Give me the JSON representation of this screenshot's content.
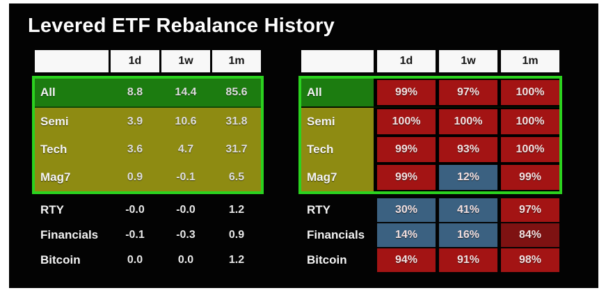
{
  "title": "Levered ETF Rebalance History",
  "palette": {
    "panel_bg": "#030303",
    "page_border": "#ffffff",
    "header_bg": "#f8f8f8",
    "highlight_border_green": "#2bd21f",
    "row_green": "#1c7c10",
    "row_olive": "#8e8b12",
    "cell_red": "#a31414",
    "cell_dark_red": "#7e1212",
    "cell_blue": "#3b6181"
  },
  "left_table": {
    "headers": [
      "",
      "1d",
      "1w",
      "1m"
    ],
    "rows": [
      {
        "label": "All",
        "tone": "green",
        "values": [
          "8.8",
          "14.4",
          "85.6"
        ]
      },
      {
        "label": "Semi",
        "tone": "olive",
        "values": [
          "3.9",
          "10.6",
          "31.8"
        ]
      },
      {
        "label": "Tech",
        "tone": "olive",
        "values": [
          "3.6",
          "4.7",
          "31.7"
        ]
      },
      {
        "label": "Mag7",
        "tone": "olive",
        "values": [
          "0.9",
          "-0.1",
          "6.5"
        ]
      },
      {
        "label": "RTY",
        "tone": "none",
        "values": [
          "-0.0",
          "-0.0",
          "1.2"
        ]
      },
      {
        "label": "Financials",
        "tone": "none",
        "values": [
          "-0.1",
          "-0.3",
          "0.9"
        ]
      },
      {
        "label": "Bitcoin",
        "tone": "none",
        "values": [
          "0.0",
          "0.0",
          "1.2"
        ]
      }
    ]
  },
  "right_table": {
    "headers": [
      "",
      "1d",
      "1w",
      "1m"
    ],
    "rows": [
      {
        "label": "All",
        "tone": "green",
        "cells": [
          {
            "value": "99%",
            "tone": "red"
          },
          {
            "value": "97%",
            "tone": "red"
          },
          {
            "value": "100%",
            "tone": "red"
          }
        ]
      },
      {
        "label": "Semi",
        "tone": "olive",
        "cells": [
          {
            "value": "100%",
            "tone": "red"
          },
          {
            "value": "100%",
            "tone": "red"
          },
          {
            "value": "100%",
            "tone": "red"
          }
        ]
      },
      {
        "label": "Tech",
        "tone": "olive",
        "cells": [
          {
            "value": "99%",
            "tone": "red"
          },
          {
            "value": "93%",
            "tone": "red"
          },
          {
            "value": "100%",
            "tone": "red"
          }
        ]
      },
      {
        "label": "Mag7",
        "tone": "olive",
        "cells": [
          {
            "value": "99%",
            "tone": "red"
          },
          {
            "value": "12%",
            "tone": "blue"
          },
          {
            "value": "99%",
            "tone": "red"
          }
        ]
      },
      {
        "label": "RTY",
        "tone": "none",
        "cells": [
          {
            "value": "30%",
            "tone": "blue"
          },
          {
            "value": "41%",
            "tone": "blue"
          },
          {
            "value": "97%",
            "tone": "red"
          }
        ]
      },
      {
        "label": "Financials",
        "tone": "none",
        "cells": [
          {
            "value": "14%",
            "tone": "blue"
          },
          {
            "value": "16%",
            "tone": "blue"
          },
          {
            "value": "84%",
            "tone": "darkred"
          }
        ]
      },
      {
        "label": "Bitcoin",
        "tone": "none",
        "cells": [
          {
            "value": "94%",
            "tone": "red"
          },
          {
            "value": "91%",
            "tone": "red"
          },
          {
            "value": "98%",
            "tone": "red"
          }
        ]
      }
    ]
  },
  "chart_data": [
    {
      "type": "table",
      "title": "Levered ETF Rebalance History",
      "columns": [
        "",
        "1d",
        "1w",
        "1m"
      ],
      "rows": [
        [
          "All",
          8.8,
          14.4,
          85.6
        ],
        [
          "Semi",
          3.9,
          10.6,
          31.8
        ],
        [
          "Tech",
          3.6,
          4.7,
          31.7
        ],
        [
          "Mag7",
          0.9,
          -0.1,
          6.5
        ],
        [
          "RTY",
          -0.0,
          -0.0,
          1.2
        ],
        [
          "Financials",
          -0.1,
          -0.3,
          0.9
        ],
        [
          "Bitcoin",
          0.0,
          0.0,
          1.2
        ]
      ],
      "layout_hints": "rows All/Semi/Tech/Mag7 highlighted with bright green border; All row green fill, Semi/Tech/Mag7 olive fill"
    },
    {
      "type": "table",
      "title": "",
      "columns": [
        "",
        "1d",
        "1w",
        "1m"
      ],
      "rows": [
        [
          "All",
          "99%",
          "97%",
          "100%"
        ],
        [
          "Semi",
          "100%",
          "100%",
          "100%"
        ],
        [
          "Tech",
          "99%",
          "93%",
          "100%"
        ],
        [
          "Mag7",
          "99%",
          "12%",
          "99%"
        ],
        [
          "RTY",
          "30%",
          "41%",
          "97%"
        ],
        [
          "Financials",
          "14%",
          "16%",
          "84%"
        ],
        [
          "Bitcoin",
          "94%",
          "91%",
          "98%"
        ]
      ],
      "layout_hints": "percentage cells are red boxes except blue boxes at Mag7-1w(12%), RTY-1d(30%), RTY-1w(41%), Financials-1d(14%), Financials-1w(16%); Financials-1m(84%) darker red; same green highlight border around top 4 rows"
    }
  ]
}
